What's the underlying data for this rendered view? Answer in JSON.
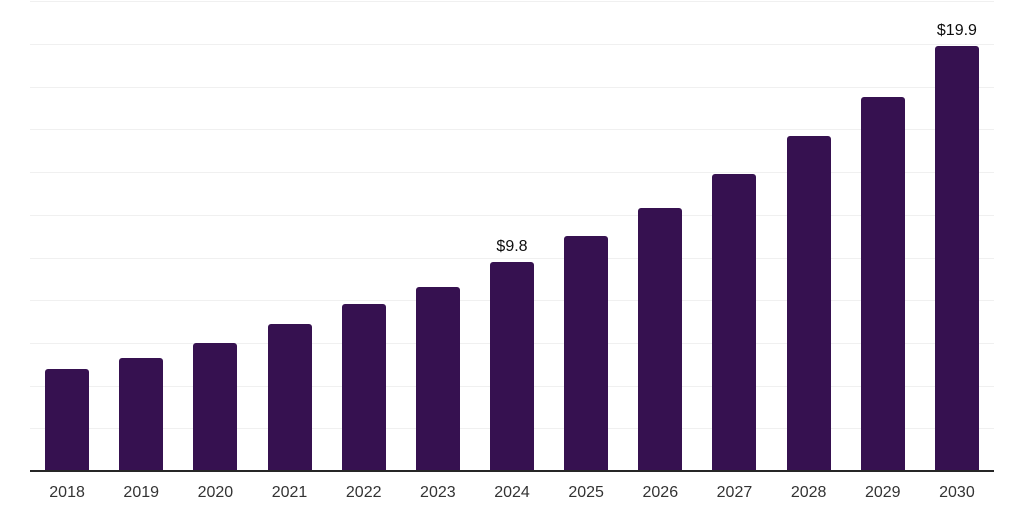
{
  "chart_data": {
    "type": "bar",
    "title": "",
    "xlabel": "",
    "ylabel": "",
    "categories": [
      "2018",
      "2019",
      "2020",
      "2021",
      "2022",
      "2023",
      "2024",
      "2025",
      "2026",
      "2027",
      "2028",
      "2029",
      "2030"
    ],
    "values": [
      4.8,
      5.3,
      6.0,
      6.9,
      7.8,
      8.6,
      9.8,
      11.0,
      12.3,
      13.9,
      15.7,
      17.5,
      19.9
    ],
    "value_labels": [
      "",
      "",
      "",
      "",
      "",
      "",
      "$9.8",
      "",
      "",
      "",
      "",
      "",
      "$19.9"
    ],
    "ylim": [
      0,
      22
    ],
    "gridline_step": 2,
    "grid": true,
    "legend_position": "none",
    "colors": {
      "bar": "#361150",
      "gridline": "#f0f0f0",
      "axis_line": "#262626",
      "tick_label": "#333333",
      "value_label": "#0d0d0d",
      "background": "#ffffff"
    }
  }
}
